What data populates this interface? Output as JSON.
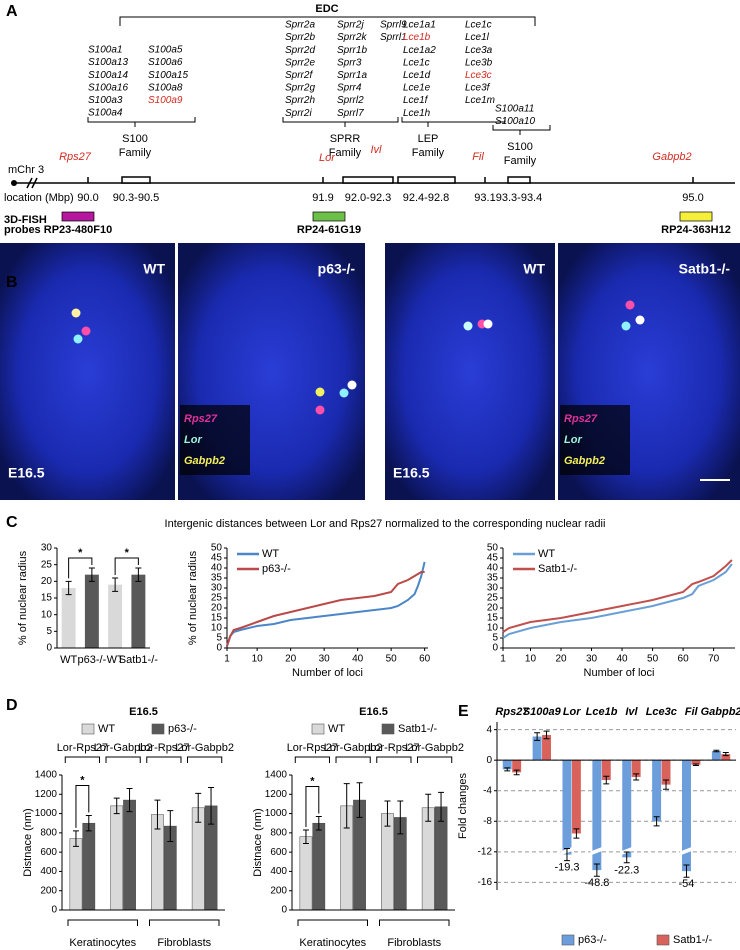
{
  "panel_a": {
    "label": "A",
    "edc": "EDC",
    "highlight_color": "#d42a20",
    "highlighted": [
      "Rps27",
      "S100a9",
      "Lor",
      "Ivl",
      "Lce1b",
      "Lce3c",
      "Fil",
      "Gabpb2"
    ],
    "gene_columns": [
      [
        [
          "S100a1",
          "S100a13",
          "S100a14",
          "S100a16",
          "S100a3",
          "S100a4"
        ],
        [
          "S100a5",
          "S100a6",
          "S100a15",
          "S100a8",
          "S100a9"
        ]
      ],
      [
        [
          "Sprr2a",
          "Sprr2b",
          "Sprr2d",
          "Sprr2e",
          "Sprr2f",
          "Sprr2g",
          "Sprr2h",
          "Sprr2i"
        ],
        [
          "Sprr2j",
          "Sprr2k",
          "Sprr1b",
          "Sprr3",
          "Sprr1a",
          "Sprr4",
          "Sprrl2",
          "Sprrl7"
        ],
        [
          "Sprrl9",
          "Sprrl1"
        ]
      ],
      [
        [
          "Lce1a1",
          "Lce1b",
          "Lce1a2",
          "Lce1c",
          "Lce1d",
          "Lce1e",
          "Lce1f",
          "Lce1h"
        ],
        [
          "Lce1c",
          "Lce1l",
          "Lce3a",
          "Lce3b",
          "Lce3c",
          "Lce3f",
          "Lce1m"
        ]
      ],
      [
        [
          "S100a11",
          "S100a10"
        ]
      ]
    ],
    "families": [
      [
        "S100",
        "Family"
      ],
      [
        "SPRR",
        "Family"
      ],
      [
        "LEP",
        "Family"
      ],
      [
        "S100",
        "Family"
      ]
    ],
    "loci": [
      "Rps27",
      "Lor",
      "Ivl",
      "Fil",
      "Gabpb2"
    ],
    "chromosome": "mChr 3",
    "location_label": "location (Mbp)",
    "locations": [
      "90.0",
      "90.3-90.5",
      "91.9",
      "92.0-92.3",
      "92.4-92.8",
      "93.1",
      "93.3-93.4",
      "95.0"
    ],
    "probes_label": [
      "3D-FISH",
      "probes"
    ],
    "probes": [
      {
        "name": "RP23-480F10",
        "color": "#b5179e"
      },
      {
        "name": "RP24-61G19",
        "color": "#6cc04a"
      },
      {
        "name": "RP24-363H12",
        "color": "#f5ef3a"
      }
    ]
  },
  "panel_b": {
    "label": "B",
    "images": [
      {
        "title": "WT",
        "stage": "E16.5"
      },
      {
        "title": "p63-/-"
      },
      {
        "title": "WT",
        "stage": "E16.5"
      },
      {
        "title": "Satb1-/-"
      }
    ],
    "legend": [
      {
        "name": "Rps27",
        "color": "#e0309a"
      },
      {
        "name": "Lor",
        "color": "#9ff5d8"
      },
      {
        "name": "Gabpb2",
        "color": "#f3f05a"
      }
    ]
  },
  "panel_c": {
    "label": "C",
    "title": "Intergenic distances between Lor and Rps27 normalized to the corresponding nuclear radii"
  },
  "panel_d": {
    "label": "D"
  },
  "panel_e": {
    "label": "E"
  },
  "chart_data": [
    {
      "type": "bar",
      "categories": [
        "WT",
        "p63-/-",
        "WT",
        "Satb1-/-"
      ],
      "values": [
        18,
        22,
        19,
        22
      ],
      "errors": [
        2,
        2,
        2,
        2
      ],
      "colors": [
        "#d9d9d9",
        "#595959",
        "#d9d9d9",
        "#595959"
      ],
      "ylabel": "% of nuclear radius",
      "ylim": [
        0,
        30
      ],
      "yticks": [
        0,
        5,
        10,
        15,
        20,
        25,
        30
      ],
      "annotations": [
        {
          "text": "*",
          "between": [
            0,
            1
          ]
        },
        {
          "text": "*",
          "between": [
            2,
            3
          ]
        }
      ]
    },
    {
      "type": "line",
      "x": [
        1,
        2,
        3,
        5,
        10,
        15,
        20,
        25,
        30,
        35,
        40,
        45,
        50,
        52,
        55,
        57,
        58,
        59,
        60
      ],
      "series": [
        {
          "name": "WT",
          "color": "#4a86c8",
          "values": [
            1,
            6,
            8,
            9,
            11,
            12,
            14,
            15,
            16,
            17,
            18,
            19,
            20,
            21,
            24,
            27,
            31,
            36,
            43
          ]
        },
        {
          "name": "p63-/-",
          "color": "#b94a48",
          "values": [
            1,
            6,
            9,
            10,
            13,
            16,
            18,
            20,
            22,
            24,
            25,
            26,
            28,
            32,
            34,
            36,
            37,
            38,
            38
          ]
        }
      ],
      "xlabel": "Number of loci",
      "ylabel": "% of nuclear radius",
      "xlim": [
        1,
        61
      ],
      "xticks": [
        1,
        10,
        20,
        30,
        40,
        50,
        60
      ],
      "ylim": [
        0,
        50
      ],
      "yticks": [
        0,
        5,
        10,
        15,
        20,
        25,
        30,
        35,
        40,
        45,
        50
      ]
    },
    {
      "type": "line",
      "x": [
        1,
        3,
        10,
        20,
        30,
        40,
        50,
        60,
        63,
        65,
        70,
        74,
        76
      ],
      "series": [
        {
          "name": "WT",
          "color": "#6a9fd6",
          "values": [
            5,
            7,
            10,
            13,
            15,
            18,
            21,
            25,
            27,
            31,
            34,
            38,
            42
          ]
        },
        {
          "name": "Satb1-/-",
          "color": "#c0504d",
          "values": [
            8,
            10,
            13,
            15,
            18,
            21,
            24,
            28,
            32,
            33,
            36,
            41,
            44
          ]
        }
      ],
      "xlabel": "Number of loci",
      "xlim": [
        1,
        77
      ],
      "xticks": [
        1,
        10,
        20,
        30,
        40,
        50,
        60,
        70
      ],
      "ylim": [
        0,
        50
      ],
      "yticks": [
        0,
        5,
        10,
        15,
        20,
        25,
        30,
        35,
        40,
        45,
        50
      ]
    },
    {
      "type": "bar",
      "title": "E16.5",
      "ylabel": "Distnace (nm)",
      "categories": [
        "Lor-Rps27",
        "Lor-Gabpb2",
        "Lor-Rps27",
        "Lor-Gabpb2"
      ],
      "sections": [
        "Keratinocytes",
        "Fibroblasts"
      ],
      "series": [
        {
          "name": "WT",
          "color": "#d9d9d9",
          "values": [
            740,
            1080,
            990,
            1060
          ],
          "errors": [
            80,
            80,
            150,
            150
          ]
        },
        {
          "name": "p63-/-",
          "color": "#595959",
          "values": [
            900,
            1140,
            870,
            1080
          ],
          "errors": [
            80,
            120,
            160,
            190
          ]
        }
      ],
      "ylim": [
        0,
        1400
      ],
      "yticks": [
        0,
        200,
        400,
        600,
        800,
        1000,
        1200,
        1400
      ],
      "annotations": [
        {
          "text": "*",
          "group": 0
        }
      ]
    },
    {
      "type": "bar",
      "title": "E16.5",
      "ylabel": "Distnace (nm)",
      "categories": [
        "Lor-Rps27",
        "Lor-Gabpb2",
        "Lor-Rps27",
        "Lor-Gabpb2"
      ],
      "sections": [
        "Keratinocytes",
        "Fibroblasts"
      ],
      "series": [
        {
          "name": "WT",
          "color": "#d9d9d9",
          "values": [
            760,
            1080,
            1000,
            1060
          ],
          "errors": [
            70,
            230,
            130,
            140
          ]
        },
        {
          "name": "Satb1-/-",
          "color": "#595959",
          "values": [
            900,
            1140,
            960,
            1070
          ],
          "errors": [
            70,
            180,
            170,
            150
          ]
        }
      ],
      "ylim": [
        0,
        1400
      ],
      "yticks": [
        0,
        200,
        400,
        600,
        800,
        1000,
        1200,
        1400
      ],
      "annotations": [
        {
          "text": "*",
          "group": 0
        }
      ]
    },
    {
      "type": "bar",
      "ylabel": "Fold changes",
      "categories": [
        "Rps27",
        "S100a9",
        "Lor",
        "Lce1b",
        "Ivl",
        "Lce3c",
        "Fil",
        "Gabpb2"
      ],
      "series": [
        {
          "name": "p63-/-",
          "color": "#6b9edb",
          "values": [
            -1.2,
            3.1,
            -19.3,
            -48.8,
            -22.3,
            -8,
            -54,
            1.2
          ],
          "errors": [
            0.2,
            0.5,
            0.8,
            0.8,
            0.7,
            0.6,
            0.8,
            0.1
          ],
          "value_labels": [
            null,
            null,
            "-19.3",
            "-48.8",
            "-22.3",
            null,
            "-54",
            null
          ]
        },
        {
          "name": "Satb1-/-",
          "color": "#d9625b",
          "values": [
            -1.6,
            3.3,
            -9.6,
            -2.6,
            -2.2,
            -3.2,
            -0.6,
            0.8
          ],
          "errors": [
            0.3,
            0.5,
            0.6,
            0.5,
            0.4,
            0.6,
            0.1,
            0.2
          ]
        }
      ],
      "ylim": [
        -17,
        5
      ],
      "yticks": [
        -16,
        -12,
        -8,
        -4,
        0,
        4
      ],
      "grid": true,
      "legend": "bottom"
    }
  ]
}
